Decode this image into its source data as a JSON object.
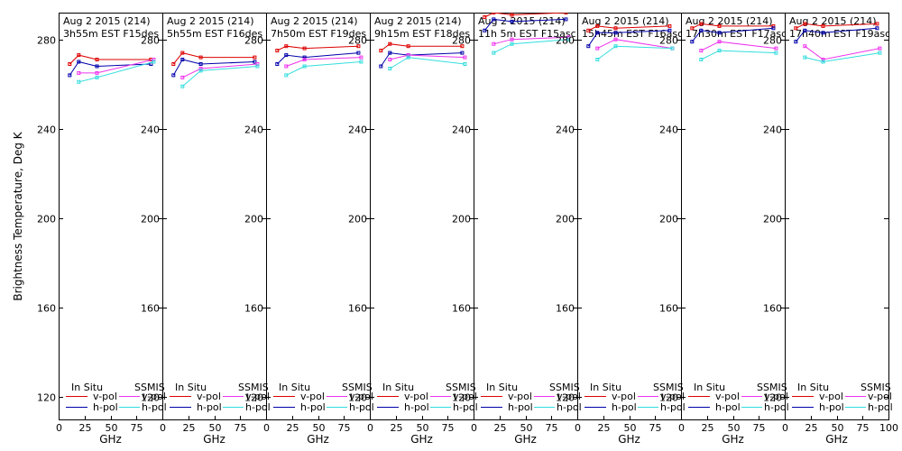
{
  "chart_data": {
    "type": "line",
    "ylabel": "Brightness Temperature, Deg K",
    "xlabel": "GHz",
    "ylim": [
      110,
      292
    ],
    "xlim": [
      0,
      100
    ],
    "yticks": [
      120,
      160,
      200,
      240,
      280
    ],
    "xticks": [
      0,
      25,
      50,
      75,
      100
    ],
    "xtick_labels": [
      "0",
      "25",
      "50",
      "75",
      "100"
    ],
    "legend": {
      "in_situ_title": "In Situ",
      "ssmis_title": "SSMIS",
      "v_label": "v-pol",
      "h_label": "h-pol"
    },
    "colors": {
      "insitu_v": "#dd0000",
      "insitu_h": "#0000aa",
      "ssmis_v": "#ee33ee",
      "ssmis_h": "#33dddd"
    },
    "panels": [
      {
        "date": "Aug 2 2015 (214)",
        "time": "3h55m EST F15des",
        "x": [
          10.7,
          19.4,
          37,
          89
        ],
        "insitu_v": [
          269,
          273,
          271,
          271
        ],
        "insitu_h": [
          264,
          270,
          268,
          269
        ],
        "ssmis_x": [
          19.35,
          37,
          91.65
        ],
        "ssmis_v": [
          265,
          265,
          271
        ],
        "ssmis_h": [
          261,
          263,
          270
        ]
      },
      {
        "date": "Aug 2 2015 (214)",
        "time": "5h55m EST F16des",
        "x": [
          10.7,
          19.4,
          37,
          89
        ],
        "insitu_v": [
          269,
          274,
          272,
          272
        ],
        "insitu_h": [
          264,
          271,
          269,
          270
        ],
        "ssmis_x": [
          19.35,
          37,
          91.65
        ],
        "ssmis_v": [
          263,
          267,
          269
        ],
        "ssmis_h": [
          259,
          266,
          268
        ]
      },
      {
        "date": "Aug 2 2015 (214)",
        "time": "7h50m EST F19des",
        "x": [
          10.7,
          19.4,
          37,
          89
        ],
        "insitu_v": [
          275,
          277,
          276,
          277
        ],
        "insitu_h": [
          269,
          273,
          272,
          274
        ],
        "ssmis_x": [
          19.35,
          37,
          91.65
        ],
        "ssmis_v": [
          268,
          271,
          272
        ],
        "ssmis_h": [
          264,
          268,
          270
        ]
      },
      {
        "date": "Aug 2 2015 (214)",
        "time": "9h15m EST F18des",
        "x": [
          10.7,
          19.4,
          37,
          89
        ],
        "insitu_v": [
          275,
          278,
          277,
          277
        ],
        "insitu_h": [
          268,
          274,
          273,
          274
        ],
        "ssmis_x": [
          19.35,
          37,
          91.65
        ],
        "ssmis_v": [
          271,
          273,
          272
        ],
        "ssmis_h": [
          267,
          272,
          269
        ]
      },
      {
        "date": "Aug 2 2015 (214)",
        "time": "11h 5m EST F15asc",
        "x": [
          10.7,
          19.4,
          37,
          89
        ],
        "insitu_v": [
          290,
          292,
          291,
          292
        ],
        "insitu_h": [
          284,
          289,
          288,
          289
        ],
        "ssmis_x": [
          19.35,
          37,
          91.65
        ],
        "ssmis_v": [
          278,
          280,
          281
        ],
        "ssmis_h": [
          274,
          278,
          280
        ]
      },
      {
        "date": "Aug 2 2015 (214)",
        "time": "15h45m EST F16asc",
        "x": [
          10.7,
          19.4,
          37,
          89
        ],
        "insitu_v": [
          284,
          286,
          285,
          286
        ],
        "insitu_h": [
          277,
          283,
          283,
          284
        ],
        "ssmis_x": [
          19.35,
          37,
          91.65
        ],
        "ssmis_v": [
          276,
          280,
          276
        ],
        "ssmis_h": [
          271,
          277,
          276
        ]
      },
      {
        "date": "Aug 2 2015 (214)",
        "time": "17h30m EST F17asc",
        "x": [
          10.7,
          19.4,
          37,
          89
        ],
        "insitu_v": [
          285,
          287,
          286,
          286
        ],
        "insitu_h": [
          279,
          284,
          283,
          285
        ],
        "ssmis_x": [
          19.35,
          37,
          91.65
        ],
        "ssmis_v": [
          275,
          279,
          276
        ],
        "ssmis_h": [
          271,
          275,
          274
        ]
      },
      {
        "date": "Aug 2 2015 (214)",
        "time": "17h40m EST F19asc",
        "x": [
          10.7,
          19.4,
          37,
          89
        ],
        "insitu_v": [
          285,
          287,
          286,
          287
        ],
        "insitu_h": [
          279,
          284,
          283,
          285
        ],
        "ssmis_x": [
          19.35,
          37,
          91.65
        ],
        "ssmis_v": [
          277,
          271,
          276
        ],
        "ssmis_h": [
          272,
          270,
          274
        ]
      }
    ]
  }
}
